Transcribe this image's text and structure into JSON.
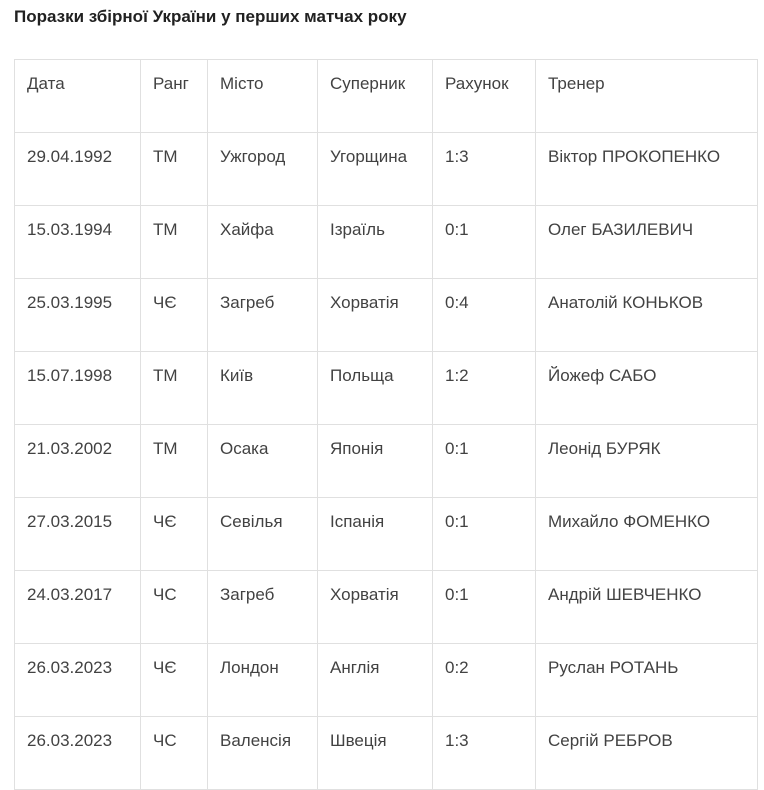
{
  "page": {
    "title": "Поразки збірної України у перших матчах року"
  },
  "table": {
    "columns": [
      "Дата",
      "Ранг",
      "Місто",
      "Суперник",
      "Рахунок",
      "Тренер"
    ],
    "rows": [
      [
        "29.04.1992",
        "ТМ",
        "Ужгород",
        "Угорщина",
        "1:3",
        "Віктор ПРОКОПЕНКО"
      ],
      [
        "15.03.1994",
        "ТМ",
        "Хайфа",
        "Ізраїль",
        "0:1",
        "Олег БАЗИЛЕВИЧ"
      ],
      [
        "25.03.1995",
        "ЧЄ",
        "Загреб",
        "Хорватія",
        "0:4",
        "Анатолій КОНЬКОВ"
      ],
      [
        "15.07.1998",
        "ТМ",
        "Київ",
        "Польща",
        "1:2",
        "Йожеф САБО"
      ],
      [
        "21.03.2002",
        "ТМ",
        "Осака",
        "Японія",
        "0:1",
        "Леонід БУРЯК"
      ],
      [
        "27.03.2015",
        "ЧЄ",
        "Севілья",
        "Іспанія",
        "0:1",
        "Михайло ФОМЕНКО"
      ],
      [
        "24.03.2017",
        "ЧС",
        "Загреб",
        "Хорватія",
        "0:1",
        "Андрій ШЕВЧЕНКО"
      ],
      [
        "26.03.2023",
        "ЧЄ",
        "Лондон",
        "Англія",
        "0:2",
        "Руслан РОТАНЬ"
      ],
      [
        "26.03.2023",
        "ЧС",
        "Валенсія",
        "Швеція",
        "1:3",
        "Сергій РЕБРОВ"
      ]
    ]
  },
  "colors": {
    "background": "#ffffff",
    "border": "#e0e0e0",
    "cell_text": "#424242",
    "title_text": "#212121"
  }
}
